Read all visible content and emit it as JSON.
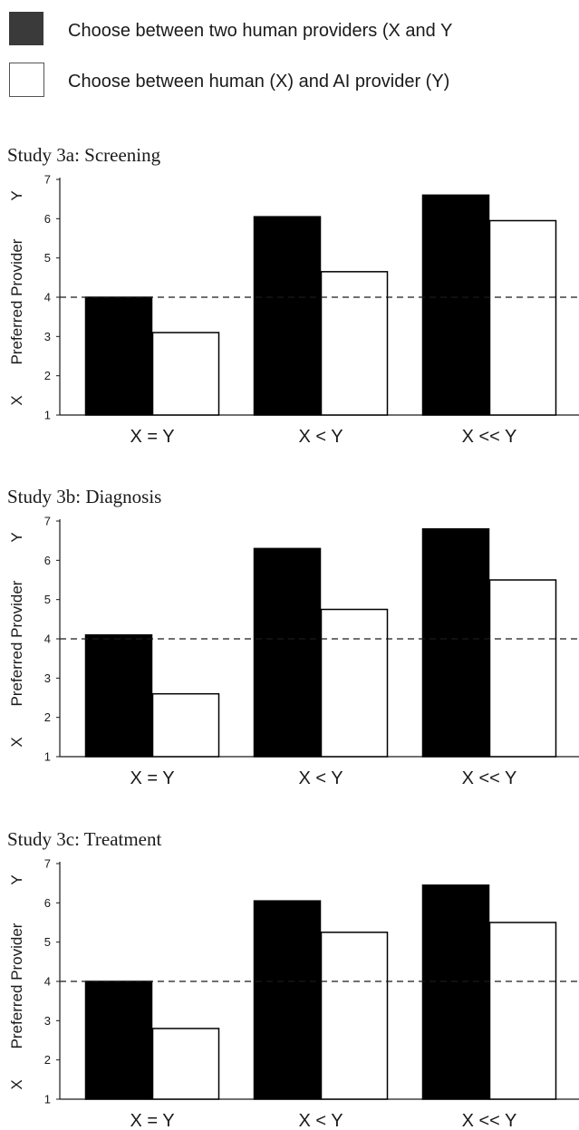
{
  "legend": {
    "items": [
      {
        "label": "Choose between two human providers (X and Y",
        "color": "#3a3a3a"
      },
      {
        "label": "Choose between human (X) and AI provider (Y)",
        "color": "#ffffff"
      }
    ]
  },
  "chart_data": [
    {
      "type": "bar",
      "title": "Study 3a: Screening",
      "ylabel": "Preferred Provider",
      "y_low_label": "X",
      "y_high_label": "Y",
      "categories": [
        "X = Y",
        "X < Y",
        "X << Y"
      ],
      "ylim": [
        1,
        7
      ],
      "yticks": [
        1,
        2,
        3,
        4,
        5,
        6,
        7
      ],
      "reference_line": 4,
      "series": [
        {
          "fill": "#000000",
          "values": [
            4.0,
            6.05,
            6.6
          ]
        },
        {
          "fill": "#ffffff",
          "values": [
            3.1,
            4.65,
            5.95
          ]
        }
      ]
    },
    {
      "type": "bar",
      "title": "Study 3b: Diagnosis",
      "ylabel": "Preferred Provider",
      "y_low_label": "X",
      "y_high_label": "Y",
      "categories": [
        "X = Y",
        "X < Y",
        "X << Y"
      ],
      "ylim": [
        1,
        7
      ],
      "yticks": [
        1,
        2,
        3,
        4,
        5,
        6,
        7
      ],
      "reference_line": 4,
      "series": [
        {
          "fill": "#000000",
          "values": [
            4.1,
            6.3,
            6.8
          ]
        },
        {
          "fill": "#ffffff",
          "values": [
            2.6,
            4.75,
            5.5
          ]
        }
      ]
    },
    {
      "type": "bar",
      "title": "Study 3c: Treatment",
      "ylabel": "Preferred Provider",
      "y_low_label": "X",
      "y_high_label": "Y",
      "categories": [
        "X = Y",
        "X < Y",
        "X << Y"
      ],
      "ylim": [
        1,
        7
      ],
      "yticks": [
        1,
        2,
        3,
        4,
        5,
        6,
        7
      ],
      "reference_line": 4,
      "series": [
        {
          "fill": "#000000",
          "values": [
            4.0,
            6.05,
            6.45
          ]
        },
        {
          "fill": "#ffffff",
          "values": [
            2.8,
            5.25,
            5.5
          ]
        }
      ]
    }
  ]
}
